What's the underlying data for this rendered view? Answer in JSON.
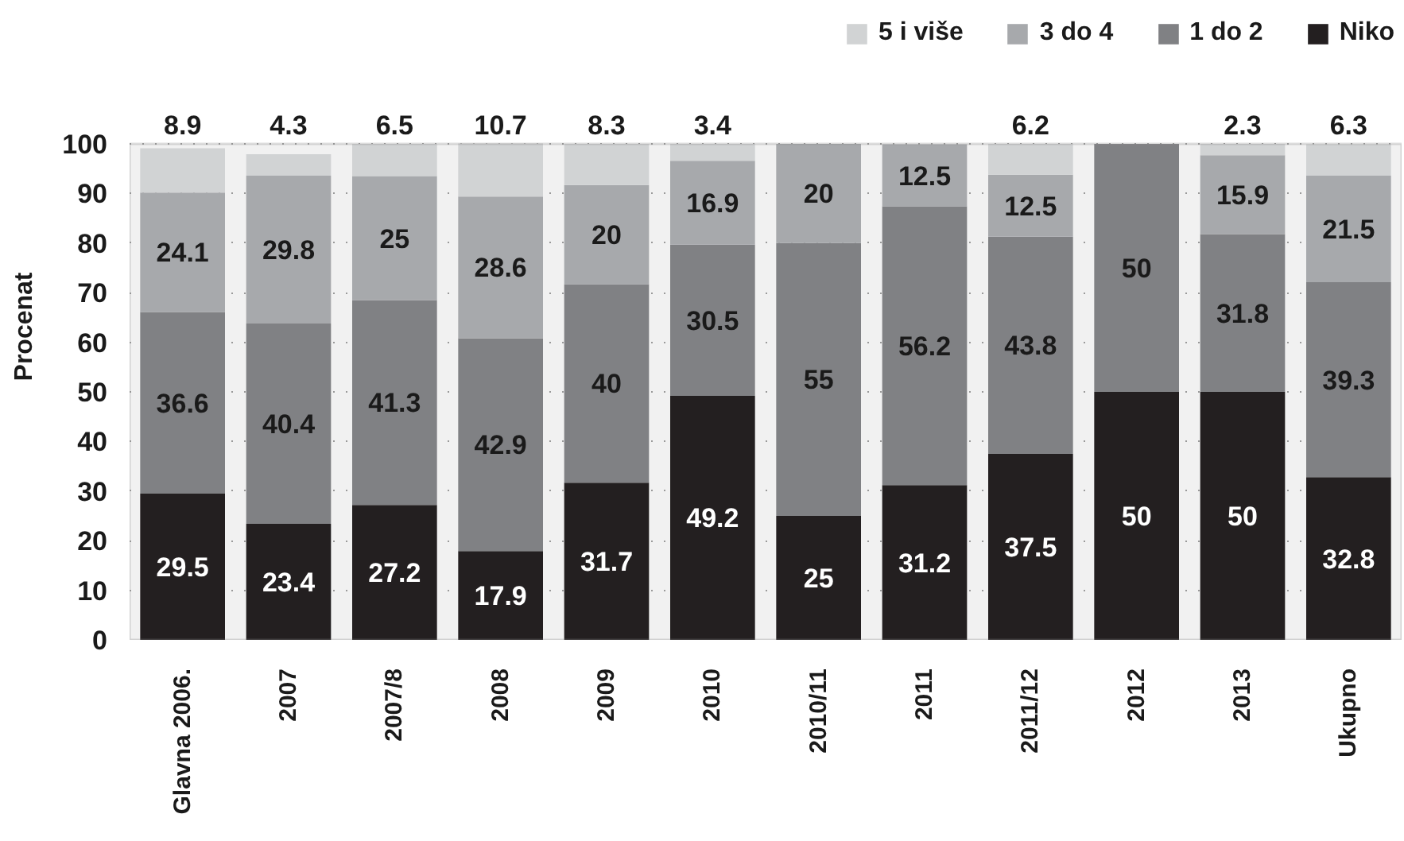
{
  "chart_data": {
    "type": "bar",
    "stacked": true,
    "ylabel": "Procenat",
    "categories": [
      "Glavna 2006.",
      "2007",
      "2007/8",
      "2008",
      "2009",
      "2010",
      "2010/11",
      "2011",
      "2011/12",
      "2012",
      "2013",
      "Ukupno"
    ],
    "series": [
      {
        "name": "Niko",
        "color": "#231f20",
        "values": [
          29.5,
          23.4,
          27.2,
          17.9,
          31.7,
          49.2,
          25,
          31.2,
          37.5,
          50,
          50,
          32.8
        ]
      },
      {
        "name": "1 do 2",
        "color": "#808184",
        "values": [
          36.6,
          40.4,
          41.3,
          42.9,
          40,
          30.5,
          55,
          56.2,
          43.8,
          50,
          31.8,
          39.3
        ]
      },
      {
        "name": "3 do 4",
        "color": "#a7a9ac",
        "values": [
          24.1,
          29.8,
          25,
          28.6,
          20,
          16.9,
          20,
          12.5,
          12.5,
          null,
          15.9,
          21.5
        ]
      },
      {
        "name": "5 i više",
        "color": "#d1d3d4",
        "values": [
          8.9,
          4.3,
          6.5,
          10.7,
          8.3,
          3.4,
          null,
          null,
          6.2,
          null,
          2.3,
          6.3
        ]
      }
    ],
    "ylim": [
      0,
      100
    ],
    "yticks": [
      0,
      10,
      20,
      30,
      40,
      50,
      60,
      70,
      80,
      90,
      100
    ],
    "grid": "y",
    "legend": "top right",
    "data_labels": true
  }
}
